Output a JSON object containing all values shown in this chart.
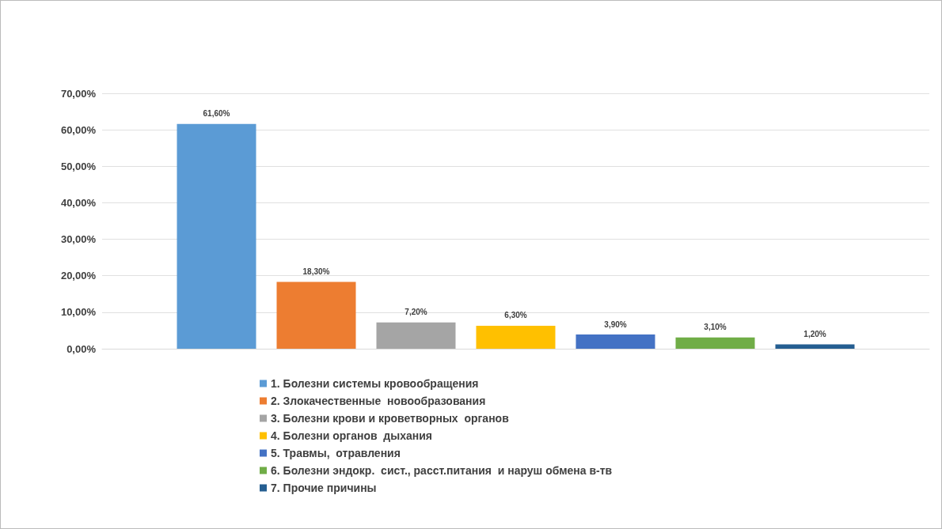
{
  "chart_data": {
    "type": "bar",
    "categories": [
      null
    ],
    "series": [
      {
        "name": "1. Болезни системы кровообращения",
        "color": "#5b9bd5",
        "values": [
          61.6
        ],
        "value_labels": [
          "61,60%"
        ]
      },
      {
        "name": "2. Злокачественные  новообразования",
        "color": "#ed7d31",
        "values": [
          18.3
        ],
        "value_labels": [
          "18,30%"
        ]
      },
      {
        "name": "3. Болезни крови и кроветворных  органов",
        "color": "#a5a5a5",
        "values": [
          7.2
        ],
        "value_labels": [
          "7,20%"
        ]
      },
      {
        "name": "4. Болезни органов  дыхания",
        "color": "#ffc000",
        "values": [
          6.3
        ],
        "value_labels": [
          "6,30%"
        ]
      },
      {
        "name": "5. Травмы,  отравления",
        "color": "#4472c4",
        "values": [
          3.9
        ],
        "value_labels": [
          "3,90%"
        ]
      },
      {
        "name": "6. Болезни эндокр.  сист., расст.питания  и наруш обмена в-тв",
        "color": "#70ad47",
        "values": [
          3.1
        ],
        "value_labels": [
          "3,10%"
        ]
      },
      {
        "name": "7. Прочие причины",
        "color": "#255e91",
        "values": [
          1.2
        ],
        "value_labels": [
          "1,20%"
        ]
      }
    ],
    "ylim": [
      0,
      70
    ],
    "yticks": [
      {
        "value": 0,
        "label": "0,00%"
      },
      {
        "value": 10,
        "label": "10,00%"
      },
      {
        "value": 20,
        "label": "20,00%"
      },
      {
        "value": 30,
        "label": "30,00%"
      },
      {
        "value": 40,
        "label": "40,00%"
      },
      {
        "value": 50,
        "label": "50,00%"
      },
      {
        "value": 60,
        "label": "60,00%"
      },
      {
        "value": 70,
        "label": "70,00%"
      }
    ],
    "grid": "y",
    "legend": "bottom"
  }
}
